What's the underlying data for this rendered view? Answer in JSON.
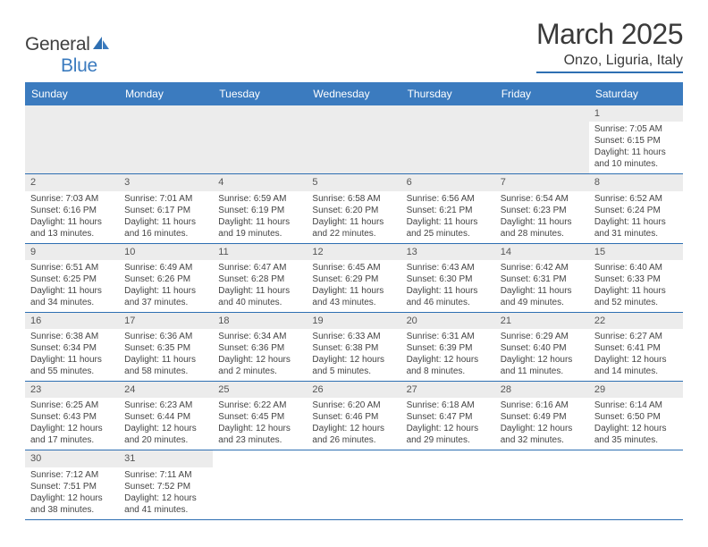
{
  "logo": {
    "text1": "General",
    "text2": "Blue"
  },
  "title": "March 2025",
  "location": "Onzo, Liguria, Italy",
  "headers": [
    "Sunday",
    "Monday",
    "Tuesday",
    "Wednesday",
    "Thursday",
    "Friday",
    "Saturday"
  ],
  "colors": {
    "header_bg": "#3b7bbf",
    "header_text": "#ffffff",
    "border": "#2e6fb2",
    "daynum_bg": "#ececec",
    "text": "#444444"
  },
  "weeks": [
    [
      null,
      null,
      null,
      null,
      null,
      null,
      {
        "n": "1",
        "sr": "Sunrise: 7:05 AM",
        "ss": "Sunset: 6:15 PM",
        "dl": "Daylight: 11 hours and 10 minutes."
      }
    ],
    [
      {
        "n": "2",
        "sr": "Sunrise: 7:03 AM",
        "ss": "Sunset: 6:16 PM",
        "dl": "Daylight: 11 hours and 13 minutes."
      },
      {
        "n": "3",
        "sr": "Sunrise: 7:01 AM",
        "ss": "Sunset: 6:17 PM",
        "dl": "Daylight: 11 hours and 16 minutes."
      },
      {
        "n": "4",
        "sr": "Sunrise: 6:59 AM",
        "ss": "Sunset: 6:19 PM",
        "dl": "Daylight: 11 hours and 19 minutes."
      },
      {
        "n": "5",
        "sr": "Sunrise: 6:58 AM",
        "ss": "Sunset: 6:20 PM",
        "dl": "Daylight: 11 hours and 22 minutes."
      },
      {
        "n": "6",
        "sr": "Sunrise: 6:56 AM",
        "ss": "Sunset: 6:21 PM",
        "dl": "Daylight: 11 hours and 25 minutes."
      },
      {
        "n": "7",
        "sr": "Sunrise: 6:54 AM",
        "ss": "Sunset: 6:23 PM",
        "dl": "Daylight: 11 hours and 28 minutes."
      },
      {
        "n": "8",
        "sr": "Sunrise: 6:52 AM",
        "ss": "Sunset: 6:24 PM",
        "dl": "Daylight: 11 hours and 31 minutes."
      }
    ],
    [
      {
        "n": "9",
        "sr": "Sunrise: 6:51 AM",
        "ss": "Sunset: 6:25 PM",
        "dl": "Daylight: 11 hours and 34 minutes."
      },
      {
        "n": "10",
        "sr": "Sunrise: 6:49 AM",
        "ss": "Sunset: 6:26 PM",
        "dl": "Daylight: 11 hours and 37 minutes."
      },
      {
        "n": "11",
        "sr": "Sunrise: 6:47 AM",
        "ss": "Sunset: 6:28 PM",
        "dl": "Daylight: 11 hours and 40 minutes."
      },
      {
        "n": "12",
        "sr": "Sunrise: 6:45 AM",
        "ss": "Sunset: 6:29 PM",
        "dl": "Daylight: 11 hours and 43 minutes."
      },
      {
        "n": "13",
        "sr": "Sunrise: 6:43 AM",
        "ss": "Sunset: 6:30 PM",
        "dl": "Daylight: 11 hours and 46 minutes."
      },
      {
        "n": "14",
        "sr": "Sunrise: 6:42 AM",
        "ss": "Sunset: 6:31 PM",
        "dl": "Daylight: 11 hours and 49 minutes."
      },
      {
        "n": "15",
        "sr": "Sunrise: 6:40 AM",
        "ss": "Sunset: 6:33 PM",
        "dl": "Daylight: 11 hours and 52 minutes."
      }
    ],
    [
      {
        "n": "16",
        "sr": "Sunrise: 6:38 AM",
        "ss": "Sunset: 6:34 PM",
        "dl": "Daylight: 11 hours and 55 minutes."
      },
      {
        "n": "17",
        "sr": "Sunrise: 6:36 AM",
        "ss": "Sunset: 6:35 PM",
        "dl": "Daylight: 11 hours and 58 minutes."
      },
      {
        "n": "18",
        "sr": "Sunrise: 6:34 AM",
        "ss": "Sunset: 6:36 PM",
        "dl": "Daylight: 12 hours and 2 minutes."
      },
      {
        "n": "19",
        "sr": "Sunrise: 6:33 AM",
        "ss": "Sunset: 6:38 PM",
        "dl": "Daylight: 12 hours and 5 minutes."
      },
      {
        "n": "20",
        "sr": "Sunrise: 6:31 AM",
        "ss": "Sunset: 6:39 PM",
        "dl": "Daylight: 12 hours and 8 minutes."
      },
      {
        "n": "21",
        "sr": "Sunrise: 6:29 AM",
        "ss": "Sunset: 6:40 PM",
        "dl": "Daylight: 12 hours and 11 minutes."
      },
      {
        "n": "22",
        "sr": "Sunrise: 6:27 AM",
        "ss": "Sunset: 6:41 PM",
        "dl": "Daylight: 12 hours and 14 minutes."
      }
    ],
    [
      {
        "n": "23",
        "sr": "Sunrise: 6:25 AM",
        "ss": "Sunset: 6:43 PM",
        "dl": "Daylight: 12 hours and 17 minutes."
      },
      {
        "n": "24",
        "sr": "Sunrise: 6:23 AM",
        "ss": "Sunset: 6:44 PM",
        "dl": "Daylight: 12 hours and 20 minutes."
      },
      {
        "n": "25",
        "sr": "Sunrise: 6:22 AM",
        "ss": "Sunset: 6:45 PM",
        "dl": "Daylight: 12 hours and 23 minutes."
      },
      {
        "n": "26",
        "sr": "Sunrise: 6:20 AM",
        "ss": "Sunset: 6:46 PM",
        "dl": "Daylight: 12 hours and 26 minutes."
      },
      {
        "n": "27",
        "sr": "Sunrise: 6:18 AM",
        "ss": "Sunset: 6:47 PM",
        "dl": "Daylight: 12 hours and 29 minutes."
      },
      {
        "n": "28",
        "sr": "Sunrise: 6:16 AM",
        "ss": "Sunset: 6:49 PM",
        "dl": "Daylight: 12 hours and 32 minutes."
      },
      {
        "n": "29",
        "sr": "Sunrise: 6:14 AM",
        "ss": "Sunset: 6:50 PM",
        "dl": "Daylight: 12 hours and 35 minutes."
      }
    ],
    [
      {
        "n": "30",
        "sr": "Sunrise: 7:12 AM",
        "ss": "Sunset: 7:51 PM",
        "dl": "Daylight: 12 hours and 38 minutes."
      },
      {
        "n": "31",
        "sr": "Sunrise: 7:11 AM",
        "ss": "Sunset: 7:52 PM",
        "dl": "Daylight: 12 hours and 41 minutes."
      },
      null,
      null,
      null,
      null,
      null
    ]
  ]
}
